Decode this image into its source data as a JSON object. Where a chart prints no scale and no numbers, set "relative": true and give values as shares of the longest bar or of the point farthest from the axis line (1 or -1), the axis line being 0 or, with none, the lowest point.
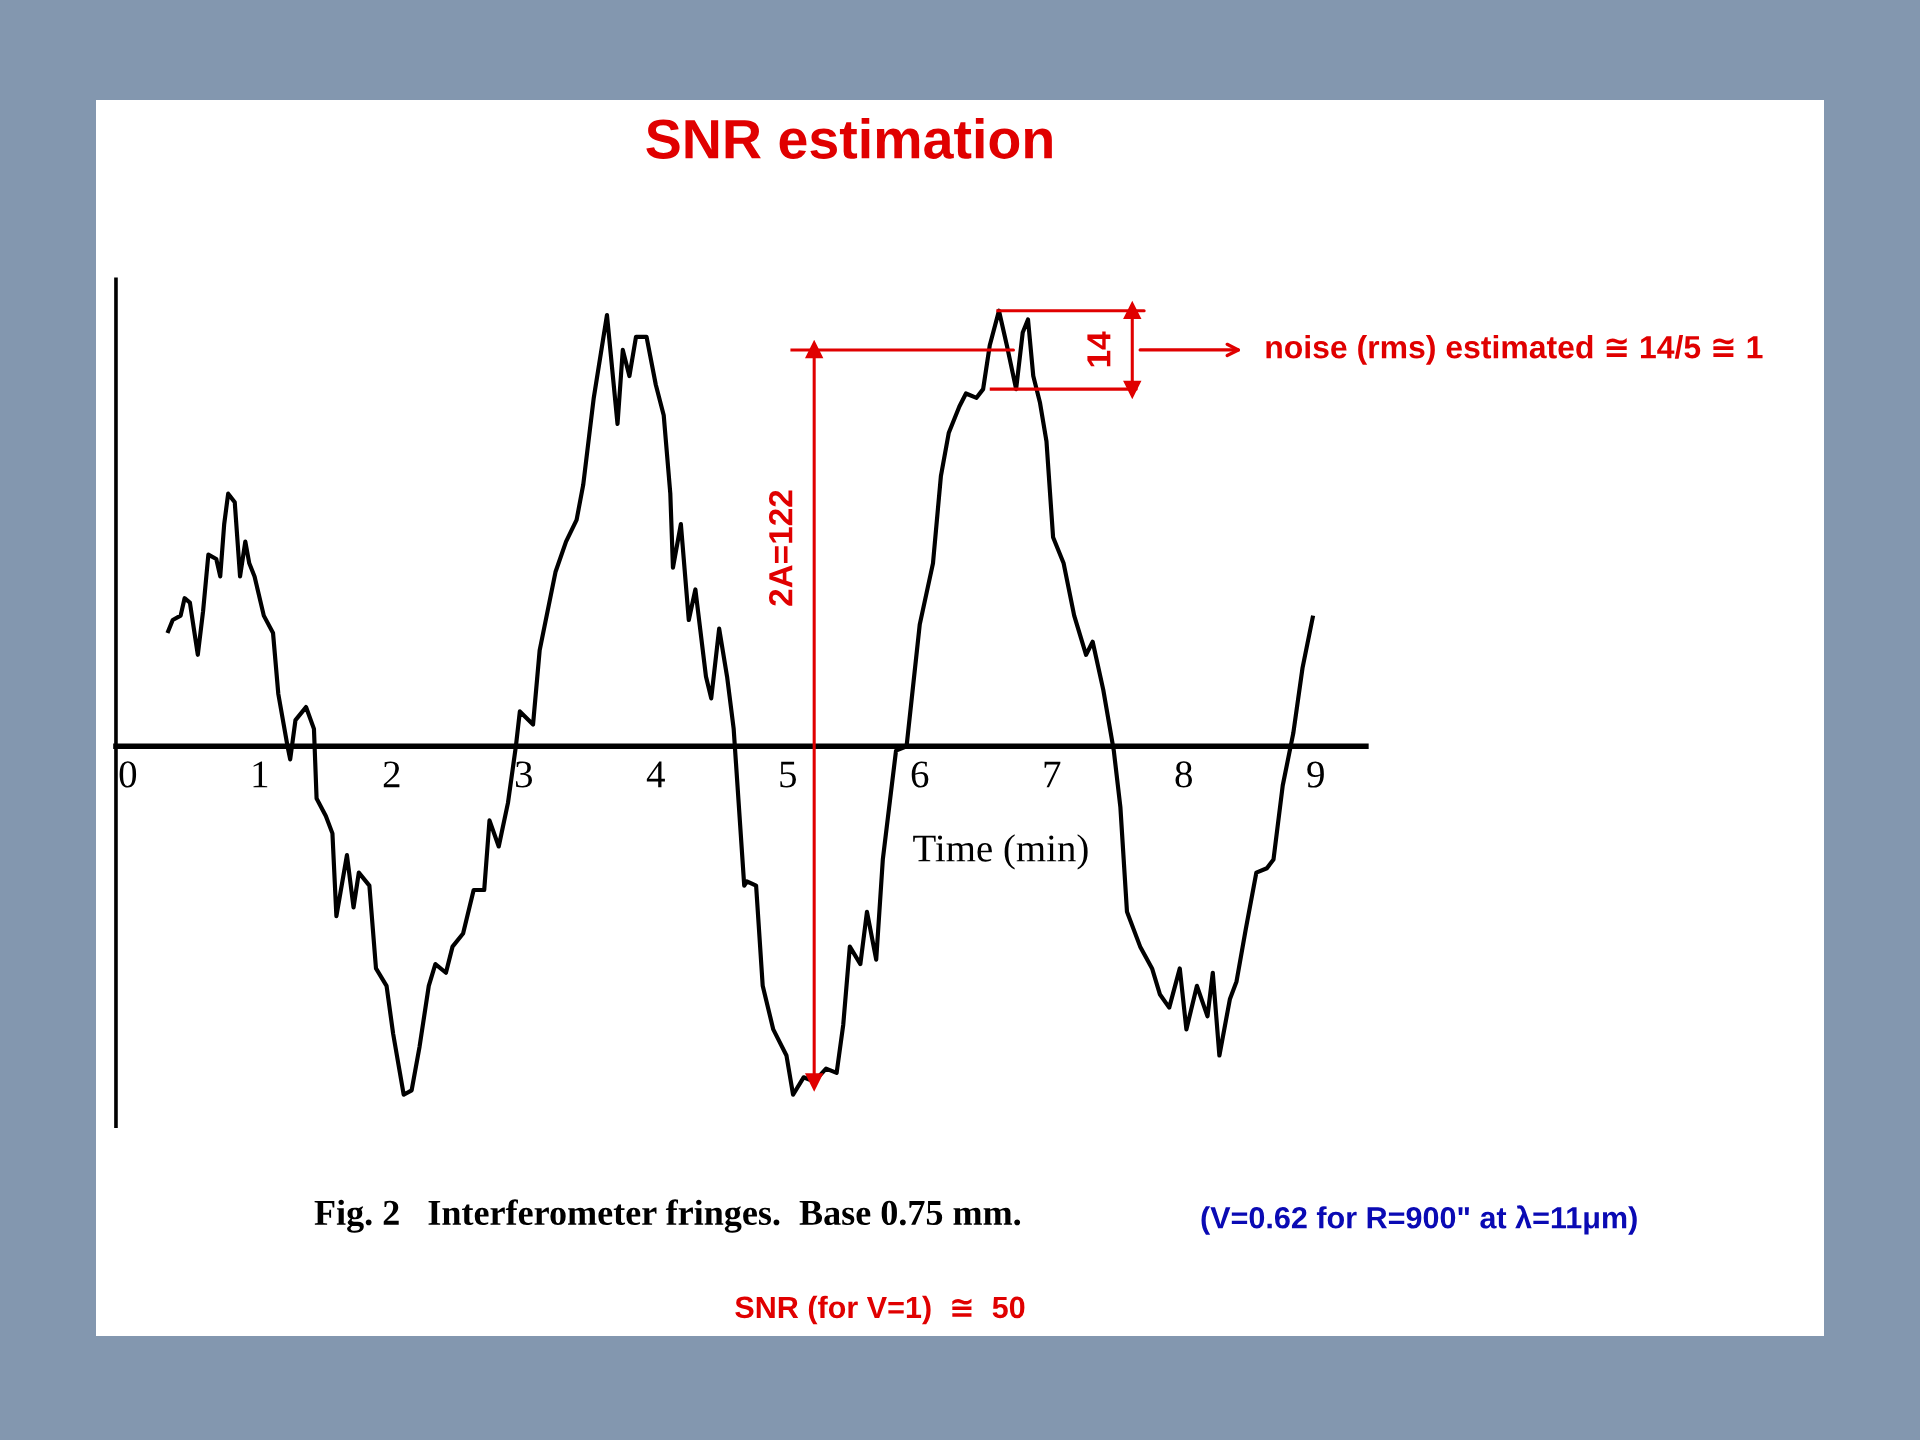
{
  "chart_data": {
    "type": "line",
    "title": "SNR estimation",
    "xlabel": "Time (min)",
    "relative": true,
    "xlim": [
      -0.09,
      9.38
    ],
    "xticks": [
      0,
      1,
      2,
      3,
      4,
      5,
      6,
      7,
      8,
      9
    ],
    "series": [
      {
        "color": "#000000",
        "x": [
          0.3,
          0.34,
          0.4,
          0.43,
          0.47,
          0.5,
          0.53,
          0.57,
          0.61,
          0.67,
          0.7,
          0.73,
          0.76,
          0.81,
          0.85,
          0.89,
          0.92,
          0.96,
          1.03,
          1.1,
          1.14,
          1.21,
          1.23,
          1.27,
          1.35,
          1.41,
          1.43,
          1.5,
          1.55,
          1.58,
          1.66,
          1.71,
          1.75,
          1.83,
          1.88,
          1.96,
          2.01,
          2.09,
          2.15,
          2.21,
          2.28,
          2.33,
          2.41,
          2.46,
          2.54,
          2.62,
          2.7,
          2.74,
          2.81,
          2.88,
          2.94,
          2.97,
          3.07,
          3.12,
          3.24,
          3.32,
          3.4,
          3.45,
          3.53,
          3.63,
          3.71,
          3.75,
          3.8,
          3.85,
          3.93,
          4.0,
          4.06,
          4.11,
          4.13,
          4.19,
          4.25,
          4.3,
          4.38,
          4.42,
          4.48,
          4.54,
          4.59,
          4.67,
          4.69,
          4.76,
          4.81,
          4.89,
          4.99,
          5.04,
          5.12,
          5.2,
          5.29,
          5.37,
          5.42,
          5.47,
          5.55,
          5.6,
          5.67,
          5.72,
          5.82,
          5.9,
          6.0,
          6.1,
          6.16,
          6.22,
          6.3,
          6.35,
          6.43,
          6.48,
          6.53,
          6.6,
          6.66,
          6.73,
          6.78,
          6.82,
          6.86,
          6.91,
          6.96,
          7.01,
          7.09,
          7.17,
          7.26,
          7.31,
          7.39,
          7.47,
          7.52,
          7.57,
          7.67,
          7.76,
          7.82,
          7.89,
          7.97,
          8.02,
          8.1,
          8.18,
          8.22,
          8.27,
          8.35,
          8.4,
          8.47,
          8.55,
          8.63,
          8.68,
          8.75,
          8.83,
          8.9,
          8.98
        ],
        "values": [
          0.26,
          0.29,
          0.3,
          0.34,
          0.33,
          0.27,
          0.21,
          0.31,
          0.44,
          0.43,
          0.39,
          0.51,
          0.58,
          0.56,
          0.39,
          0.47,
          0.42,
          0.39,
          0.3,
          0.26,
          0.12,
          0.0,
          -0.03,
          0.06,
          0.09,
          0.04,
          -0.12,
          -0.16,
          -0.2,
          -0.39,
          -0.25,
          -0.37,
          -0.29,
          -0.32,
          -0.51,
          -0.55,
          -0.66,
          -0.8,
          -0.79,
          -0.69,
          -0.55,
          -0.5,
          -0.52,
          -0.46,
          -0.43,
          -0.33,
          -0.33,
          -0.17,
          -0.23,
          -0.13,
          0.0,
          0.08,
          0.05,
          0.22,
          0.4,
          0.47,
          0.52,
          0.6,
          0.8,
          0.99,
          0.74,
          0.91,
          0.85,
          0.94,
          0.94,
          0.83,
          0.76,
          0.58,
          0.41,
          0.51,
          0.29,
          0.36,
          0.16,
          0.11,
          0.27,
          0.16,
          0.04,
          -0.32,
          -0.31,
          -0.32,
          -0.55,
          -0.65,
          -0.71,
          -0.8,
          -0.76,
          -0.77,
          -0.74,
          -0.75,
          -0.64,
          -0.46,
          -0.5,
          -0.38,
          -0.49,
          -0.26,
          -0.01,
          0.0,
          0.28,
          0.42,
          0.62,
          0.72,
          0.78,
          0.81,
          0.8,
          0.82,
          0.92,
          1.0,
          0.92,
          0.82,
          0.95,
          0.98,
          0.85,
          0.79,
          0.7,
          0.48,
          0.42,
          0.3,
          0.21,
          0.24,
          0.13,
          -0.01,
          -0.14,
          -0.38,
          -0.46,
          -0.51,
          -0.57,
          -0.6,
          -0.51,
          -0.65,
          -0.55,
          -0.62,
          -0.52,
          -0.71,
          -0.58,
          -0.54,
          -0.42,
          -0.29,
          -0.28,
          -0.26,
          -0.09,
          0.03,
          0.18,
          0.3
        ]
      },
      {
        "name": "2A=122",
        "color": "#e00000",
        "x": [
          5.02,
          6.71,
          5.2,
          5.2
        ],
        "values": [
          0.91,
          0.91,
          0.91,
          -0.77
        ]
      },
      {
        "name": "14",
        "color": "#e00000",
        "x": [
          6.58,
          7.7,
          7.61,
          7.61,
          7.64,
          6.53
        ],
        "values": [
          1.0,
          1.0,
          1.0,
          0.82,
          0.82,
          0.82
        ]
      }
    ],
    "annotations": [
      "noise (rms) estimated ≅ 14/5 ≅ 1",
      "Fig. 2   Interferometer fringes.  Base 0.75 mm.",
      "(V=0.62 for R=900\" at λ=11μm)",
      "SNR (for V=1)  ≅  50"
    ]
  }
}
